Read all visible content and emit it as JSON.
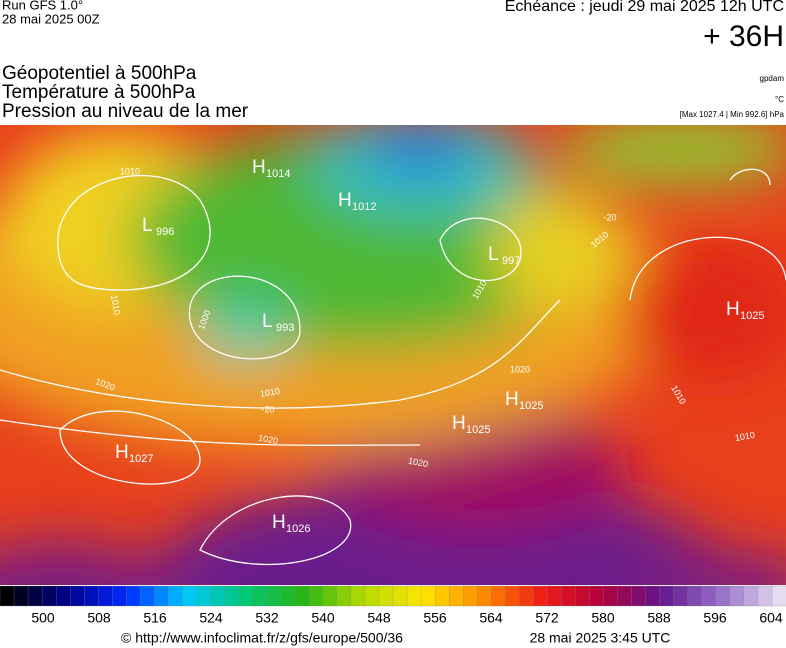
{
  "header": {
    "run": "Run GFS 1.0°",
    "run_date": "28 mai 2025 00Z",
    "echeance": "Echéance : jeudi 29 mai 2025 12h UTC",
    "lead": "+ 36H",
    "fields": [
      "Géopotentiel à 500hPa",
      "Température à 500hPa",
      "Pression au niveau de la mer"
    ],
    "units": [
      "gpdam",
      "°C",
      "[Max 1027.4 | Min 992.6] hPa"
    ]
  },
  "map": {
    "centers": [
      {
        "letter": "H",
        "value": "1014"
      },
      {
        "letter": "H",
        "value": "1012"
      },
      {
        "letter": "L",
        "value": "996"
      },
      {
        "letter": "L",
        "value": "997"
      },
      {
        "letter": "L",
        "value": "993"
      },
      {
        "letter": "H",
        "value": "1025"
      },
      {
        "letter": "H",
        "value": "1025"
      },
      {
        "letter": "H",
        "value": "1025"
      },
      {
        "letter": "H",
        "value": "1027"
      },
      {
        "letter": "H",
        "value": "1026"
      }
    ],
    "contour_labels": [
      "1010",
      "1010",
      "1000",
      "1020",
      "1010",
      "-20",
      "1020",
      "1020",
      "1010",
      "1020",
      "-20",
      "1010",
      "1010",
      "1010"
    ]
  },
  "colorbar": {
    "labels": [
      "500",
      "508",
      "516",
      "524",
      "532",
      "540",
      "548",
      "556",
      "564",
      "572",
      "580",
      "588",
      "596",
      "604"
    ]
  },
  "footer": {
    "url": "© http://www.infoclimat.fr/z/gfs/europe/500/36",
    "date": "28 mai 2025  3:45 UTC"
  }
}
